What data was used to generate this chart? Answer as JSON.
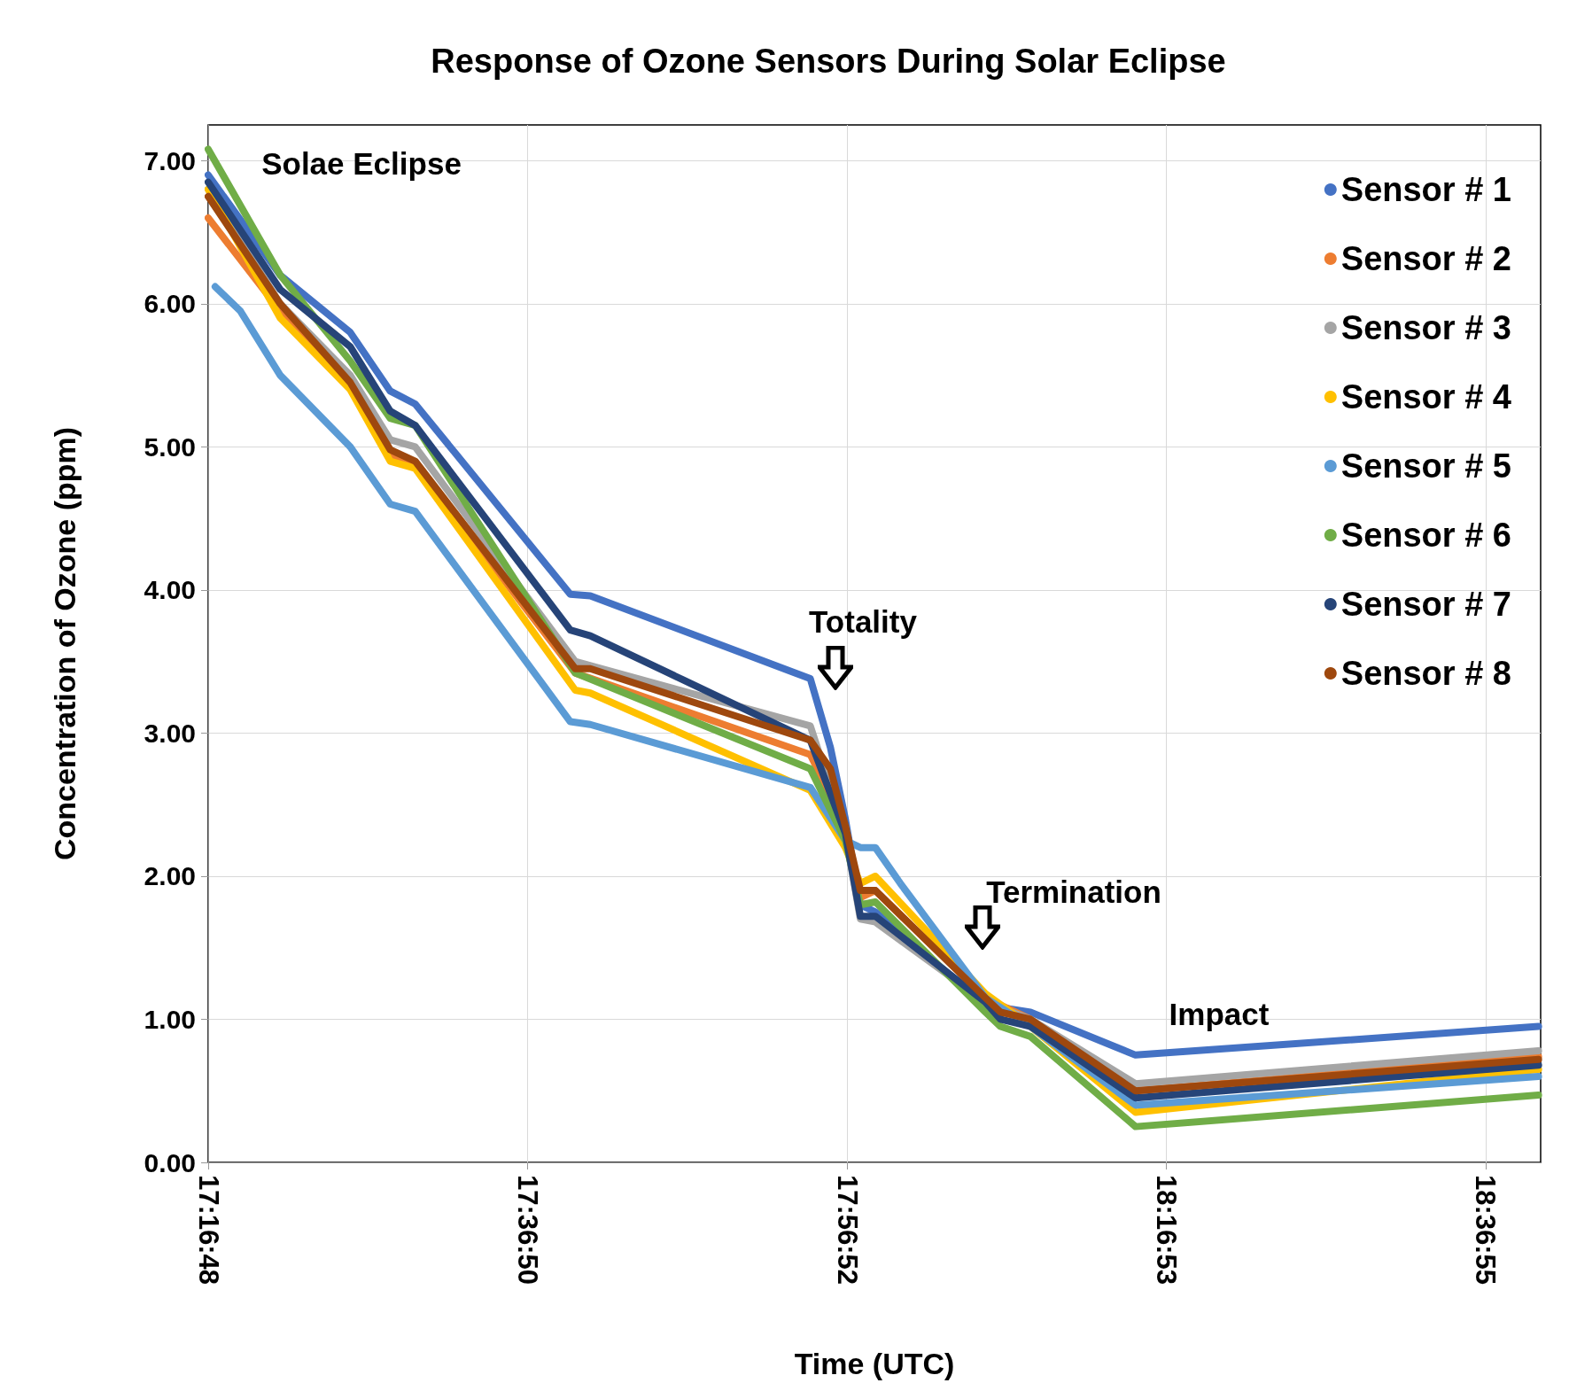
{
  "chart_data": {
    "type": "line",
    "title": "Response of Ozone Sensors During Solar Eclipse",
    "xlabel": "Time (UTC)",
    "ylabel": "Concentration of Ozone (ppm)",
    "xlim": [
      17.28,
      18.6728
    ],
    "xticks": [
      {
        "value": 17.28,
        "label": "17:16:48"
      },
      {
        "value": 17.613889,
        "label": "17:36:50"
      },
      {
        "value": 17.947778,
        "label": "17:56:52"
      },
      {
        "value": 18.281389,
        "label": "18:16:53"
      },
      {
        "value": 18.615278,
        "label": "18:36:55"
      }
    ],
    "ylim": [
      0,
      7.25
    ],
    "yticks": [
      {
        "value": 0,
        "label": "0.00"
      },
      {
        "value": 1,
        "label": "1.00"
      },
      {
        "value": 2,
        "label": "2.00"
      },
      {
        "value": 3,
        "label": "3.00"
      },
      {
        "value": 4,
        "label": "4.00"
      },
      {
        "value": 5,
        "label": "5.00"
      },
      {
        "value": 6,
        "label": "6.00"
      },
      {
        "value": 7,
        "label": "7.00"
      }
    ],
    "grid": true,
    "legend": "top right",
    "marker": "none",
    "line_style": "solid",
    "annotations": [
      "Solae Eclipse",
      "Totality",
      "Termination",
      "Impact"
    ],
    "series": [
      {
        "name": "Sensor # 1",
        "color": "#4472c4",
        "x": [
          17.28,
          17.3553,
          17.4285,
          17.4703,
          17.4964,
          17.6585,
          17.6794,
          17.9094,
          17.9304,
          17.946,
          17.9617,
          17.9774,
          18.0924,
          18.1395,
          18.2127,
          18.2493,
          18.6706
        ],
        "values": [
          6.9,
          6.2,
          5.8,
          5.39,
          5.3,
          3.97,
          3.96,
          3.38,
          2.9,
          2.4,
          1.8,
          1.75,
          1.1,
          1.05,
          0.85,
          0.75,
          0.95
        ]
      },
      {
        "name": "Sensor # 2",
        "color": "#ed7d31",
        "x": [
          17.28,
          17.3553,
          17.4285,
          17.4703,
          17.4964,
          17.6637,
          17.9094,
          17.946,
          17.9617,
          17.9774,
          18.0924,
          18.1395,
          18.2493,
          18.6706
        ],
        "values": [
          6.6,
          5.95,
          5.45,
          4.95,
          4.88,
          3.42,
          2.85,
          2.35,
          1.85,
          1.9,
          1.15,
          1.0,
          0.5,
          0.74
        ]
      },
      {
        "name": "Sensor # 3",
        "color": "#a5a5a5",
        "x": [
          17.28,
          17.3553,
          17.4285,
          17.4703,
          17.4964,
          17.6637,
          17.9094,
          17.946,
          17.9617,
          17.9774,
          18.0924,
          18.1395,
          18.2493,
          18.6706
        ],
        "values": [
          6.8,
          6.0,
          5.5,
          5.05,
          5.0,
          3.5,
          3.05,
          2.3,
          1.7,
          1.68,
          1.12,
          1.0,
          0.55,
          0.78
        ]
      },
      {
        "name": "Sensor # 4",
        "color": "#ffc000",
        "x": [
          17.28,
          17.3553,
          17.4285,
          17.4703,
          17.4964,
          17.6637,
          17.6794,
          17.9094,
          17.946,
          17.9617,
          17.9774,
          18.0924,
          18.1395,
          18.2493,
          18.6706
        ],
        "values": [
          6.8,
          5.9,
          5.4,
          4.9,
          4.85,
          3.3,
          3.28,
          2.6,
          2.2,
          1.95,
          2.0,
          1.18,
          0.95,
          0.35,
          0.65
        ]
      },
      {
        "name": "Sensor # 5",
        "color": "#5b9bd5",
        "x": [
          17.2873,
          17.3135,
          17.3553,
          17.4285,
          17.4703,
          17.4964,
          17.6585,
          17.6794,
          17.9094,
          17.946,
          17.9617,
          17.9774,
          18.0035,
          18.0924,
          18.1395,
          18.2493,
          18.6706
        ],
        "values": [
          6.12,
          5.95,
          5.5,
          5.0,
          4.6,
          4.55,
          3.08,
          3.06,
          2.62,
          2.25,
          2.2,
          2.2,
          1.95,
          1.15,
          0.95,
          0.4,
          0.6
        ]
      },
      {
        "name": "Sensor # 6",
        "color": "#70ad47",
        "x": [
          17.28,
          17.3553,
          17.4285,
          17.4703,
          17.4964,
          17.6637,
          17.9094,
          17.946,
          17.9617,
          17.9774,
          18.0924,
          18.1081,
          18.1395,
          18.2493,
          18.6706
        ],
        "values": [
          7.08,
          6.2,
          5.6,
          5.2,
          5.15,
          3.42,
          2.75,
          2.25,
          1.8,
          1.82,
          1.05,
          0.95,
          0.88,
          0.25,
          0.47
        ]
      },
      {
        "name": "Sensor # 7",
        "color": "#264478",
        "x": [
          17.28,
          17.3553,
          17.4285,
          17.4703,
          17.4964,
          17.6585,
          17.6794,
          17.9094,
          17.946,
          17.9617,
          17.9774,
          18.0924,
          18.1081,
          18.1395,
          18.2493,
          18.6706
        ],
        "values": [
          6.85,
          6.1,
          5.7,
          5.25,
          5.15,
          3.72,
          3.68,
          2.95,
          2.3,
          1.72,
          1.72,
          1.12,
          1.0,
          0.95,
          0.45,
          0.68
        ]
      },
      {
        "name": "Sensor # 8",
        "color": "#9e480e",
        "x": [
          17.28,
          17.3553,
          17.4285,
          17.4703,
          17.4964,
          17.6637,
          17.6794,
          17.9094,
          17.9304,
          17.946,
          17.9617,
          17.9774,
          18.0924,
          18.1081,
          18.1395,
          18.2493,
          18.6706
        ],
        "values": [
          6.75,
          6.0,
          5.45,
          4.98,
          4.9,
          3.45,
          3.45,
          2.95,
          2.75,
          2.35,
          1.9,
          1.9,
          1.15,
          1.05,
          1.0,
          0.5,
          0.72
        ]
      }
    ]
  }
}
